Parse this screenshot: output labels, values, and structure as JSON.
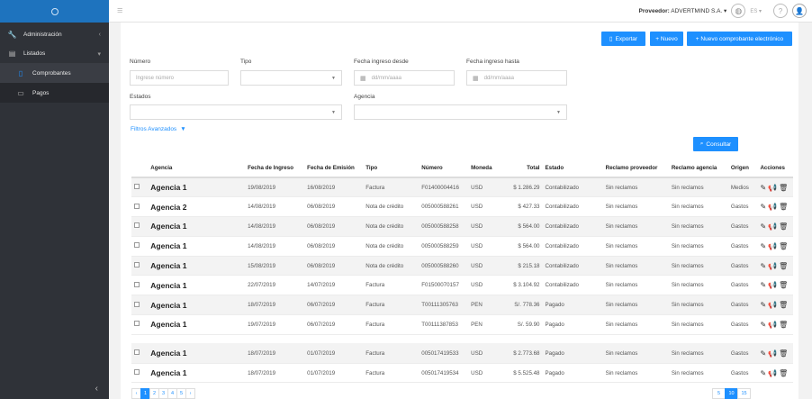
{
  "brand": {
    "logo_text": "•"
  },
  "sidebar": {
    "items": [
      {
        "icon": "wrench-icon",
        "glyph": "🔧",
        "label": "Administración"
      },
      {
        "icon": "list-icon",
        "glyph": "▤",
        "label": "Listados"
      }
    ],
    "subitems": [
      {
        "icon": "document-icon",
        "glyph": "▯",
        "label": "Comprobantes"
      },
      {
        "icon": "wallet-icon",
        "glyph": "▭",
        "label": "Pagos"
      }
    ],
    "collapse_glyph": "‹"
  },
  "topbar": {
    "provider_label": "Proveedor:",
    "provider_name": "ADVERTMIND S.A.",
    "caret": "▾",
    "lang": "ES ▾",
    "help_glyph": "?",
    "user_glyph": "👤",
    "globe_glyph": "◍"
  },
  "actions": {
    "export": "Exportar",
    "new": "+ Nuevo",
    "new_electronic": "+ Nuevo comprobante electrónico",
    "consult": "Consultar"
  },
  "filters": {
    "numero_label": "Número",
    "numero_placeholder": "Ingrese número",
    "tipo_label": "Tipo",
    "fecha_desde_label": "Fecha ingreso desde",
    "fecha_hasta_label": "Fecha ingreso hasta",
    "date_placeholder": "dd/mm/aaaa",
    "estados_label": "Estados",
    "agencia_label": "Agencia",
    "advanced": "Filtros Avanzados"
  },
  "table": {
    "headers": [
      "",
      "Agencia",
      "Fecha de Ingreso",
      "Fecha de Emisión",
      "Tipo",
      "Número",
      "Moneda",
      "Total",
      "Estado",
      "Reclamo proveedor",
      "Reclamo agencia",
      "Origen",
      "Acciones"
    ],
    "rows": [
      {
        "agencia": "Agencia 1",
        "ingreso": "19/08/2019",
        "emision": "16/08/2019",
        "tipo": "Factura",
        "numero": "F01400004416",
        "moneda": "USD",
        "total": "$ 1.286.29",
        "estado": "Contabilizado",
        "rec_prov": "Sin reclamos",
        "rec_ag": "Sin reclamos",
        "origen": "Medios"
      },
      {
        "agencia": "Agencia 2",
        "ingreso": "14/08/2019",
        "emision": "06/08/2019",
        "tipo": "Nota de crédito",
        "numero": "005000588261",
        "moneda": "USD",
        "total": "$ 427.33",
        "estado": "Contabilizado",
        "rec_prov": "Sin reclamos",
        "rec_ag": "Sin reclamos",
        "origen": "Gastos"
      },
      {
        "agencia": "Agencia 1",
        "ingreso": "14/08/2019",
        "emision": "06/08/2019",
        "tipo": "Nota de crédito",
        "numero": "005000588258",
        "moneda": "USD",
        "total": "$ 564.00",
        "estado": "Contabilizado",
        "rec_prov": "Sin reclamos",
        "rec_ag": "Sin reclamos",
        "origen": "Gastos"
      },
      {
        "agencia": "Agencia 1",
        "ingreso": "14/08/2019",
        "emision": "06/08/2019",
        "tipo": "Nota de crédito",
        "numero": "005000588259",
        "moneda": "USD",
        "total": "$ 564.00",
        "estado": "Contabilizado",
        "rec_prov": "Sin reclamos",
        "rec_ag": "Sin reclamos",
        "origen": "Gastos"
      },
      {
        "agencia": "Agencia 1",
        "ingreso": "15/08/2019",
        "emision": "06/08/2019",
        "tipo": "Nota de crédito",
        "numero": "005000588260",
        "moneda": "USD",
        "total": "$ 215.18",
        "estado": "Contabilizado",
        "rec_prov": "Sin reclamos",
        "rec_ag": "Sin reclamos",
        "origen": "Gastos"
      },
      {
        "agencia": "Agencia 1",
        "ingreso": "22/07/2019",
        "emision": "14/07/2019",
        "tipo": "Factura",
        "numero": "F01500070157",
        "moneda": "USD",
        "total": "$ 3.104.92",
        "estado": "Contabilizado",
        "rec_prov": "Sin reclamos",
        "rec_ag": "Sin reclamos",
        "origen": "Gastos"
      },
      {
        "agencia": "Agencia 1",
        "ingreso": "18/07/2019",
        "emision": "06/07/2019",
        "tipo": "Factura",
        "numero": "T00111305763",
        "moneda": "PEN",
        "total": "S/. 778.36",
        "estado": "Pagado",
        "rec_prov": "Sin reclamos",
        "rec_ag": "Sin reclamos",
        "origen": "Gastos"
      },
      {
        "agencia": "Agencia 1",
        "ingreso": "19/07/2019",
        "emision": "06/07/2019",
        "tipo": "Factura",
        "numero": "T00111387853",
        "moneda": "PEN",
        "total": "S/. 59.90",
        "estado": "Pagado",
        "rec_prov": "Sin reclamos",
        "rec_ag": "Sin reclamos",
        "origen": "Gastos"
      },
      {
        "agencia": "Agencia 1",
        "ingreso": "18/07/2019",
        "emision": "01/07/2019",
        "tipo": "Factura",
        "numero": "005017419533",
        "moneda": "USD",
        "total": "$ 2.773.68",
        "estado": "Pagado",
        "rec_prov": "Sin reclamos",
        "rec_ag": "Sin reclamos",
        "origen": "Gastos"
      },
      {
        "agencia": "Agencia 1",
        "ingreso": "18/07/2019",
        "emision": "01/07/2019",
        "tipo": "Factura",
        "numero": "005017419534",
        "moneda": "USD",
        "total": "$ 5.525.48",
        "estado": "Pagado",
        "rec_prov": "Sin reclamos",
        "rec_ag": "Sin reclamos",
        "origen": "Gastos"
      }
    ],
    "action_glyphs": "✎📢🗑"
  },
  "pagination": {
    "prev": "‹",
    "pages": [
      "1",
      "2",
      "3",
      "4",
      "5"
    ],
    "next": "›",
    "current": "1",
    "sizes": [
      "5",
      "10",
      "15"
    ],
    "current_size": "10"
  },
  "colors": {
    "accent": "#1e90ff",
    "sidebar": "#2f3238"
  }
}
